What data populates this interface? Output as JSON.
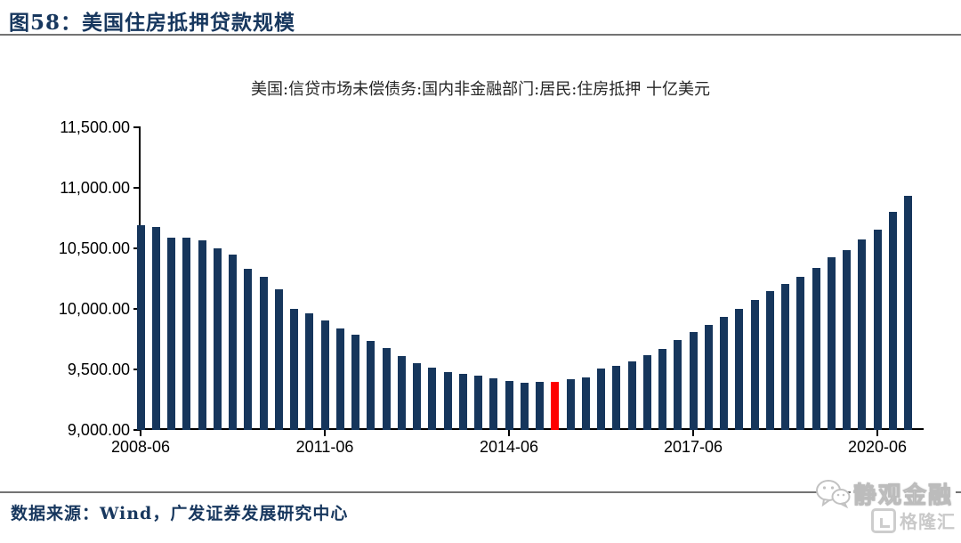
{
  "header": {
    "figure_label": "图58：",
    "title": "美国住房抵押贷款规模"
  },
  "footer": {
    "source": "数据来源：Wind，广发证券发展研究中心"
  },
  "watermark": {
    "name": "静观金融",
    "logo_text": "格隆汇"
  },
  "colors": {
    "bar": "#16365c",
    "highlight": "#fe0000",
    "title_text": "#17375e",
    "rule": "#737373",
    "axis": "#000000",
    "watermark": "#c9c9c9"
  },
  "chart_data": {
    "type": "bar",
    "title": "美国:信贷市场未偿债务:国内非金融部门:居民:住房抵押 十亿美元",
    "xlabel": "",
    "ylabel": "",
    "unit": "十亿美元",
    "ylim": [
      9000,
      11500
    ],
    "ytick_step": 500,
    "ytick_labels": [
      "9,000.00",
      "9,500.00",
      "10,000.00",
      "10,500.00",
      "11,000.00",
      "11,500.00"
    ],
    "xtick_indices": [
      0,
      12,
      24,
      36,
      48
    ],
    "xtick_labels": [
      "2008-06",
      "2011-06",
      "2014-06",
      "2017-06",
      "2020-06"
    ],
    "highlight_index": 27,
    "legend": "none",
    "grid": false,
    "x": [
      "2008-06",
      "2008-09",
      "2008-12",
      "2009-03",
      "2009-06",
      "2009-09",
      "2009-12",
      "2010-03",
      "2010-06",
      "2010-09",
      "2010-12",
      "2011-03",
      "2011-06",
      "2011-09",
      "2011-12",
      "2012-03",
      "2012-06",
      "2012-09",
      "2012-12",
      "2013-03",
      "2013-06",
      "2013-09",
      "2013-12",
      "2014-03",
      "2014-06",
      "2014-09",
      "2014-12",
      "2015-03",
      "2015-06",
      "2015-09",
      "2015-12",
      "2016-03",
      "2016-06",
      "2016-09",
      "2016-12",
      "2017-03",
      "2017-06",
      "2017-09",
      "2017-12",
      "2018-03",
      "2018-06",
      "2018-09",
      "2018-12",
      "2019-03",
      "2019-06",
      "2019-09",
      "2019-12",
      "2020-03",
      "2020-06",
      "2020-09",
      "2020-12"
    ],
    "values": [
      10695,
      10678,
      10592,
      10587,
      10567,
      10499,
      10449,
      10334,
      10267,
      10164,
      10002,
      9965,
      9904,
      9835,
      9786,
      9737,
      9678,
      9609,
      9548,
      9516,
      9474,
      9462,
      9449,
      9425,
      9405,
      9388,
      9393,
      9393,
      9418,
      9430,
      9504,
      9528,
      9565,
      9615,
      9666,
      9744,
      9811,
      9867,
      9936,
      10000,
      10071,
      10150,
      10206,
      10267,
      10341,
      10427,
      10487,
      10575,
      10653,
      10800,
      10935
    ]
  }
}
